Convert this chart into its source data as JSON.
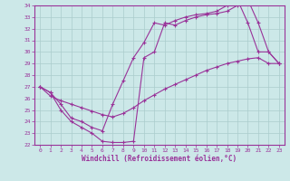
{
  "title": "",
  "xlabel": "Windchill (Refroidissement éolien,°C)",
  "ylabel": "",
  "bg_color": "#cce8e8",
  "grid_color": "#aacccc",
  "line_color": "#993399",
  "xlim": [
    -0.5,
    23.5
  ],
  "ylim": [
    22,
    34
  ],
  "xticks": [
    0,
    1,
    2,
    3,
    4,
    5,
    6,
    7,
    8,
    9,
    10,
    11,
    12,
    13,
    14,
    15,
    16,
    17,
    18,
    19,
    20,
    21,
    22,
    23
  ],
  "yticks": [
    22,
    23,
    24,
    25,
    26,
    27,
    28,
    29,
    30,
    31,
    32,
    33,
    34
  ],
  "line1_x": [
    0,
    1,
    2,
    3,
    4,
    5,
    6,
    7,
    8,
    9,
    10,
    11,
    12,
    13,
    14,
    15,
    16,
    17,
    18,
    19,
    20,
    21,
    22,
    23
  ],
  "line1_y": [
    27.0,
    26.5,
    25.0,
    24.0,
    23.5,
    23.0,
    22.3,
    22.2,
    22.2,
    22.3,
    29.5,
    30.0,
    32.5,
    32.3,
    32.7,
    33.0,
    33.2,
    33.3,
    33.5,
    34.0,
    34.5,
    32.5,
    30.0,
    29.0
  ],
  "line2_x": [
    0,
    1,
    2,
    3,
    4,
    5,
    6,
    7,
    8,
    9,
    10,
    11,
    12,
    13,
    14,
    15,
    16,
    17,
    18,
    19,
    20,
    21,
    22,
    23
  ],
  "line2_y": [
    27.0,
    26.5,
    25.5,
    24.3,
    24.0,
    23.5,
    23.2,
    25.5,
    27.5,
    29.5,
    30.8,
    32.5,
    32.3,
    32.7,
    33.0,
    33.2,
    33.3,
    33.5,
    34.0,
    34.5,
    32.5,
    30.0,
    30.0,
    29.0
  ],
  "line3_x": [
    0,
    1,
    2,
    3,
    4,
    5,
    6,
    7,
    8,
    9,
    10,
    11,
    12,
    13,
    14,
    15,
    16,
    17,
    18,
    19,
    20,
    21,
    22,
    23
  ],
  "line3_y": [
    27.0,
    26.2,
    25.8,
    25.5,
    25.2,
    24.9,
    24.6,
    24.4,
    24.7,
    25.2,
    25.8,
    26.3,
    26.8,
    27.2,
    27.6,
    28.0,
    28.4,
    28.7,
    29.0,
    29.2,
    29.4,
    29.5,
    29.0,
    29.0
  ]
}
